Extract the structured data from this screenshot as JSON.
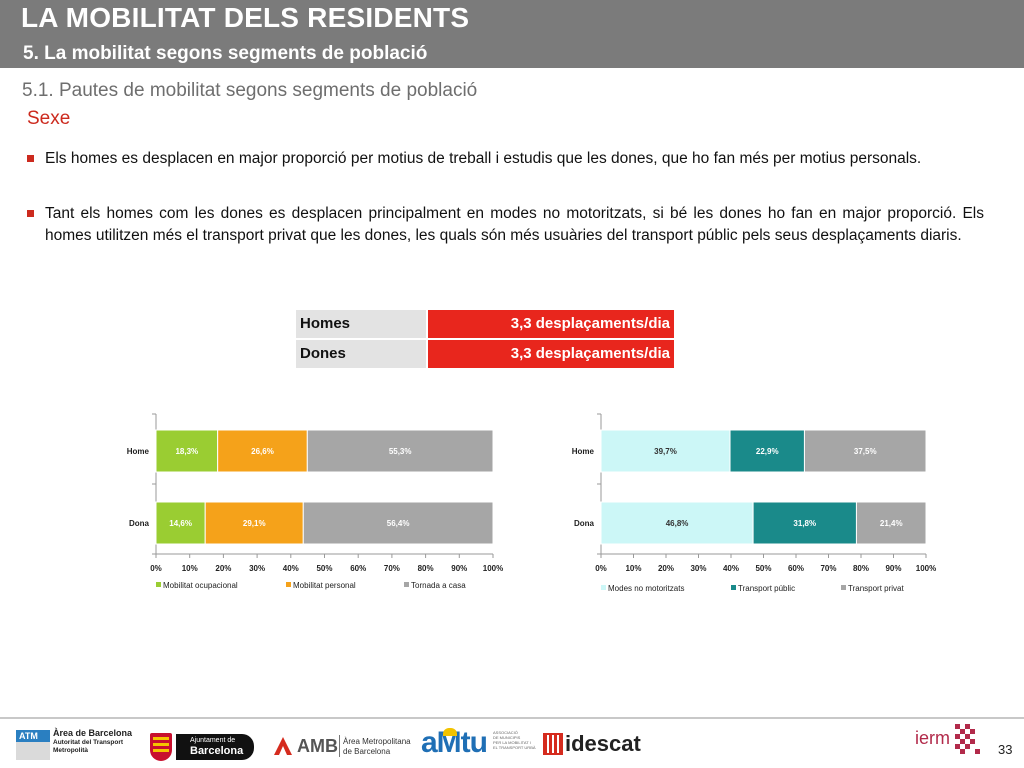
{
  "header": {
    "title": "LA MOBILITAT DELS RESIDENTS",
    "subtitle": "5. La mobilitat segons segments de població"
  },
  "section": {
    "title": "5.1. Pautes de mobilitat segons segments de població",
    "topic": "Sexe"
  },
  "bullets": [
    "Els homes es desplacen en major proporció per motius de treball i estudis que les dones, que ho fan més per motius personals.",
    "Tant els homes com les dones es desplacen principalment en modes no motoritzats, si bé les dones ho fan en major proporció. Els homes utilitzen més el transport privat que les dones, les quals són més usuàries del transport públic pels seus desplaçaments diaris."
  ],
  "trips_table": [
    {
      "label": "Homes",
      "value": "3,3 desplaçaments/dia"
    },
    {
      "label": "Dones",
      "value": "3,3 desplaçaments/dia"
    }
  ],
  "chart_data": [
    {
      "type": "bar",
      "orientation": "horizontal",
      "stacked": "percent",
      "categories": [
        "Home",
        "Dona"
      ],
      "series": [
        {
          "name": "Mobilitat ocupacional",
          "values": [
            18.3,
            14.6
          ],
          "labels": [
            "18,3%",
            "14,6%"
          ],
          "color": "#9acd32"
        },
        {
          "name": "Mobilitat personal",
          "values": [
            26.6,
            29.1
          ],
          "labels": [
            "26,6%",
            "29,1%"
          ],
          "color": "#f5a21a"
        },
        {
          "name": "Tornada a casa",
          "values": [
            55.3,
            56.4
          ],
          "labels": [
            "55,3%",
            "56,4%"
          ],
          "color": "#a6a6a6"
        }
      ],
      "x_ticks": [
        "0%",
        "10%",
        "20%",
        "30%",
        "40%",
        "50%",
        "60%",
        "70%",
        "80%",
        "90%",
        "100%"
      ],
      "xlim": [
        0,
        100
      ],
      "legend": "bottom"
    },
    {
      "type": "bar",
      "orientation": "horizontal",
      "stacked": "percent",
      "categories": [
        "Home",
        "Dona"
      ],
      "series": [
        {
          "name": "Modes no motoritzats",
          "values": [
            39.7,
            46.8
          ],
          "labels": [
            "39,7%",
            "46,8%"
          ],
          "color": "#ccf7f7"
        },
        {
          "name": "Transport públic",
          "values": [
            22.9,
            31.8
          ],
          "labels": [
            "22,9%",
            "31,8%"
          ],
          "color": "#1a8a8a"
        },
        {
          "name": "Transport privat",
          "values": [
            37.5,
            21.4
          ],
          "labels": [
            "37,5%",
            "21,4%"
          ],
          "color": "#a6a6a6"
        }
      ],
      "x_ticks": [
        "0%",
        "10%",
        "20%",
        "30%",
        "40%",
        "50%",
        "60%",
        "70%",
        "80%",
        "90%",
        "100%"
      ],
      "xlim": [
        0,
        100
      ],
      "legend": "bottom"
    }
  ],
  "footer": {
    "logo_atm": {
      "badge": "ATM",
      "line1": "Àrea de Barcelona",
      "line2": "Autoritat del Transport",
      "line3": "Metropolità"
    },
    "logo_ajuntament": {
      "line1": "Ajuntament de",
      "line2": "Barcelona"
    },
    "logo_amb": {
      "brand": "AMB",
      "line1": "Àrea Metropolitana",
      "line2": "de Barcelona"
    },
    "logo_amtu": {
      "brand": "aMtu",
      "line1": "ASSOCIACIÓ",
      "line2": "DE MUNICIPIS",
      "line3": "PER LA MOBILITAT I",
      "line4": "EL TRANSPORT URBÀ"
    },
    "logo_idescat": {
      "brand": "idescat"
    },
    "logo_iermb": {
      "brand": "ierm"
    },
    "page_number": "33"
  }
}
